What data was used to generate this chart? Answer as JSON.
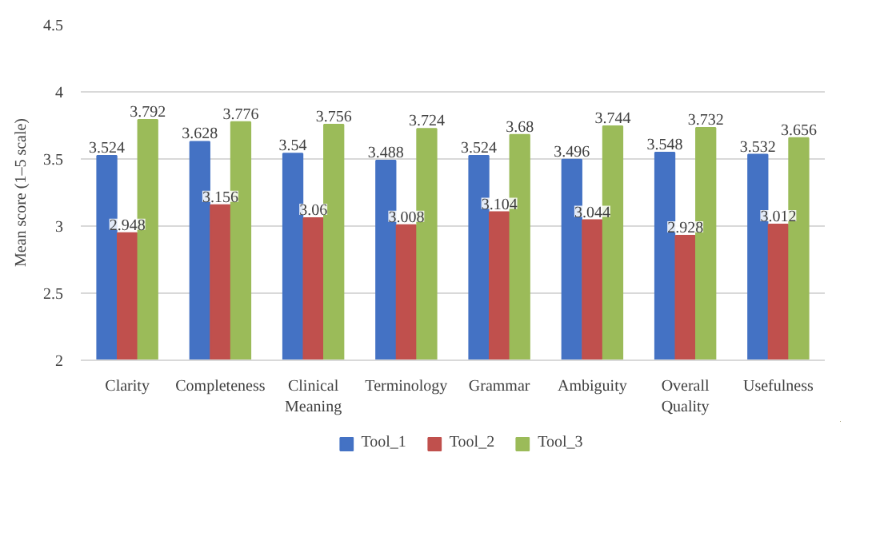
{
  "chart_data": {
    "type": "bar",
    "ylabel": "Mean score (1–5 scale)",
    "categories": [
      "Clarity",
      "Completeness",
      "Clinical Meaning",
      "Terminology",
      "Grammar",
      "Ambiguity",
      "Overall Quality",
      "Usefulness"
    ],
    "series": [
      {
        "name": "Tool_1",
        "color": "#4472c4",
        "values": [
          3.524,
          3.628,
          3.54,
          3.488,
          3.524,
          3.496,
          3.548,
          3.532
        ]
      },
      {
        "name": "Tool_2",
        "color": "#c0504d",
        "values": [
          2.948,
          3.156,
          3.06,
          3.008,
          3.104,
          3.044,
          2.928,
          3.012
        ]
      },
      {
        "name": "Tool_3",
        "color": "#9bbb59",
        "values": [
          3.792,
          3.776,
          3.756,
          3.724,
          3.68,
          3.744,
          3.732,
          3.656
        ]
      }
    ],
    "ylim": [
      2,
      4.5
    ],
    "yticks": [
      2,
      2.5,
      3,
      3.5,
      4,
      4.5
    ],
    "grid": "y",
    "legend": "bottom",
    "data_labels": true
  }
}
